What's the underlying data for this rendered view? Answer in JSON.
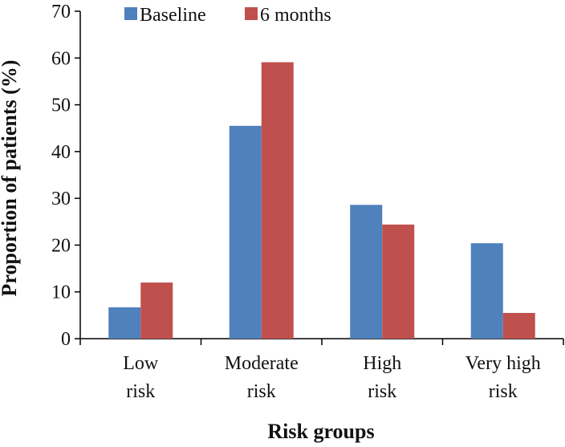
{
  "chart_data": {
    "type": "bar",
    "title": "",
    "xlabel": "Risk groups",
    "ylabel": "Proportion of patients (%)",
    "ylim": [
      0,
      70
    ],
    "yticks": [
      0,
      10,
      20,
      30,
      40,
      50,
      60,
      70
    ],
    "grid": false,
    "legend_position": "top-left",
    "categories": [
      [
        "Low",
        "risk"
      ],
      [
        "Moderate",
        "risk"
      ],
      [
        "High",
        "risk"
      ],
      [
        "Very high",
        "risk"
      ]
    ],
    "series": [
      {
        "name": "Baseline",
        "color": "#4f81bd",
        "values": [
          6.7,
          45.5,
          28.6,
          20.4
        ]
      },
      {
        "name": "6 months",
        "color": "#c0504d",
        "values": [
          12.0,
          59.1,
          24.4,
          5.5
        ]
      }
    ]
  }
}
